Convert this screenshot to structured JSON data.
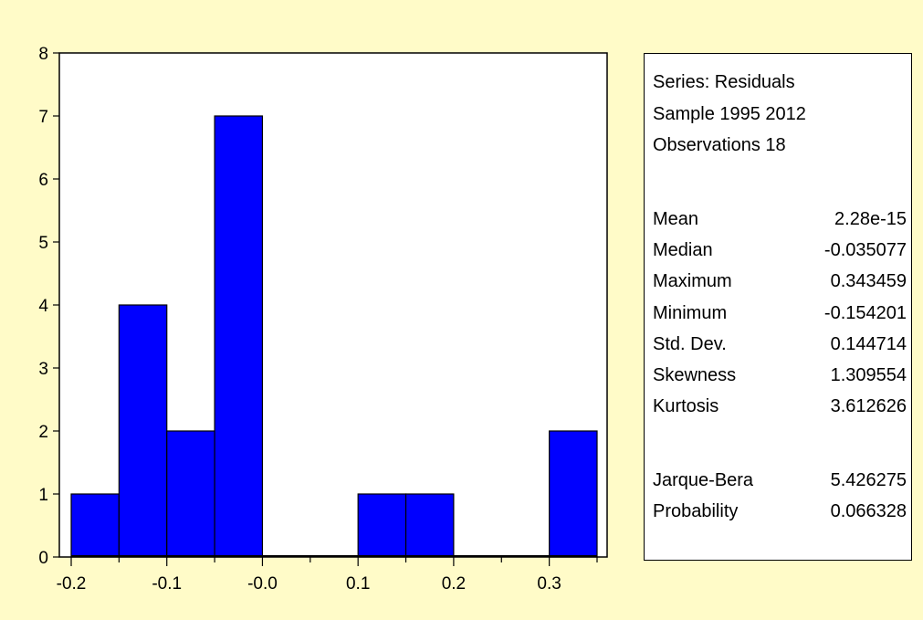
{
  "chart_data": {
    "type": "bar",
    "title": "",
    "xlabel": "",
    "ylabel": "",
    "bin_edges": [
      -0.2,
      -0.15,
      -0.1,
      -0.05,
      0.0,
      0.05,
      0.1,
      0.15,
      0.2,
      0.25,
      0.3,
      0.35
    ],
    "values": [
      1,
      4,
      2,
      7,
      0,
      0,
      1,
      1,
      0,
      0,
      2
    ],
    "xlim": [
      -0.2,
      0.35
    ],
    "ylim": [
      0,
      8
    ],
    "x_ticks": [
      "-0.2",
      "-0.1",
      "-0.0",
      "0.1",
      "0.2",
      "0.3"
    ],
    "y_ticks": [
      "0",
      "1",
      "2",
      "3",
      "4",
      "5",
      "6",
      "7",
      "8"
    ],
    "bar_color": "#0000ff",
    "grid": false
  },
  "stats": {
    "series": "Series: Residuals",
    "sample": "Sample 1995 2012",
    "observations": "Observations 18",
    "rows": [
      {
        "label": "Mean",
        "value": "2.28e-15"
      },
      {
        "label": "Median",
        "value": "-0.035077"
      },
      {
        "label": "Maximum",
        "value": "0.343459"
      },
      {
        "label": "Minimum",
        "value": "-0.154201"
      },
      {
        "label": "Std. Dev.",
        "value": "0.144714"
      },
      {
        "label": "Skewness",
        "value": "1.309554"
      },
      {
        "label": "Kurtosis",
        "value": "3.612626"
      }
    ],
    "test_rows": [
      {
        "label": "Jarque-Bera",
        "value": "5.426275"
      },
      {
        "label": "Probability",
        "value": "0.066328"
      }
    ]
  },
  "colors": {
    "background": "#fffbc8",
    "bar": "#0000ff"
  }
}
